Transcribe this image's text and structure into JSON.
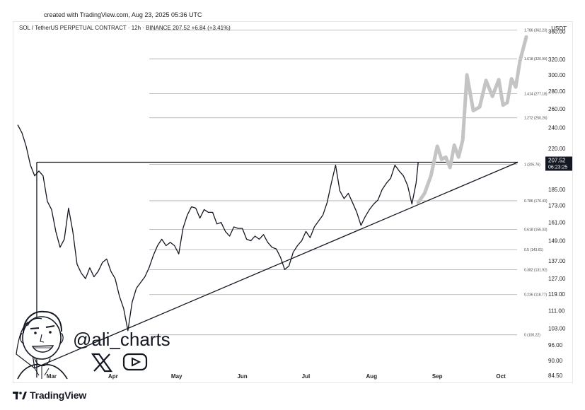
{
  "header": {
    "created_text": "created with TradingView.com, Aug 23, 2025 05:36 UTC",
    "symbol_text": "SOL / TetherUS PERPETUAL CONTRACT · 12h · BINANCE  207.52  +6.84 (+3.41%)",
    "currency": "USDT"
  },
  "watermark": {
    "handle": "@ali_charts"
  },
  "footer": {
    "logo_text": "TradingView"
  },
  "colors": {
    "price_line": "#131722",
    "projection": "#c4c4c4",
    "fib_line": "#aaaaaa",
    "trendline": "#131722",
    "price_tag_bg": "#131722"
  },
  "chart_data": {
    "type": "line",
    "title": "",
    "xlabel": "",
    "ylabel": "",
    "ylim": [
      82,
      375
    ],
    "y_scale": "log",
    "x_ticks": [
      "Mar",
      "Apr",
      "May",
      "Jun",
      "Jul",
      "Aug",
      "Sep",
      "Oct"
    ],
    "y_ticks": [
      360.0,
      320.0,
      300.0,
      280.0,
      260.0,
      240.0,
      220.0,
      185.0,
      173.0,
      161.0,
      149.0,
      137.0,
      127.0,
      119.0,
      111.0,
      103.0,
      96.0,
      90.0,
      84.5
    ],
    "y_tick_labels": [
      "360.00",
      "320.00",
      "300.00",
      "280.00",
      "260.00",
      "240.00",
      "220.00",
      "185.00",
      "173.00",
      "161.00",
      "149.00",
      "137.00",
      "127.00",
      "119.00",
      "111.00",
      "103.00",
      "96.00",
      "90.00",
      "84.50"
    ],
    "current_price": {
      "value": 207.52,
      "label": "207.52",
      "countdown": "06:23:25"
    },
    "fib_levels": [
      {
        "ratio": "1.786",
        "value": 362.23,
        "label": "1.786 (362.23)"
      },
      {
        "ratio": "1.618",
        "value": 320.99,
        "label": "1.618 (320.99)"
      },
      {
        "ratio": "1.414",
        "value": 277.18,
        "label": "1.414 (277.18)"
      },
      {
        "ratio": "1.272",
        "value": 250.26,
        "label": "1.272 (250.26)"
      },
      {
        "ratio": "1",
        "value": 205.76,
        "label": "1 (205.76)"
      },
      {
        "ratio": "0.786",
        "value": 176.43,
        "label": "0.786 (176.43)"
      },
      {
        "ratio": "0.618",
        "value": 156.33,
        "label": "0.618 (156.33)"
      },
      {
        "ratio": "0.5",
        "value": 143.61,
        "label": "0.5 (143.61)"
      },
      {
        "ratio": "0.382",
        "value": 131.92,
        "label": "0.382 (131.92)"
      },
      {
        "ratio": "0.236",
        "value": 118.77,
        "label": "0.236 (118.77)"
      },
      {
        "ratio": "0",
        "value": 100.22,
        "label": "0 (100.22)"
      }
    ],
    "series": [
      {
        "name": "",
        "x": [
          "2025-02-15",
          "2025-02-17",
          "2025-02-19",
          "2025-02-21",
          "2025-02-23",
          "2025-02-25",
          "2025-02-27",
          "2025-03-01",
          "2025-03-03",
          "2025-03-05",
          "2025-03-07",
          "2025-03-09",
          "2025-03-11",
          "2025-03-13",
          "2025-03-15",
          "2025-03-17",
          "2025-03-19",
          "2025-03-21",
          "2025-03-23",
          "2025-03-25",
          "2025-03-27",
          "2025-03-29",
          "2025-03-31",
          "2025-04-02",
          "2025-04-04",
          "2025-04-06",
          "2025-04-08",
          "2025-04-10",
          "2025-04-12",
          "2025-04-14",
          "2025-04-16",
          "2025-04-18",
          "2025-04-20",
          "2025-04-22",
          "2025-04-24",
          "2025-04-26",
          "2025-04-28",
          "2025-04-30",
          "2025-05-02",
          "2025-05-04",
          "2025-05-06",
          "2025-05-08",
          "2025-05-10",
          "2025-05-12",
          "2025-05-14",
          "2025-05-16",
          "2025-05-18",
          "2025-05-20",
          "2025-05-22",
          "2025-05-24",
          "2025-05-26",
          "2025-05-28",
          "2025-05-30",
          "2025-06-01",
          "2025-06-03",
          "2025-06-05",
          "2025-06-07",
          "2025-06-09",
          "2025-06-11",
          "2025-06-13",
          "2025-06-15",
          "2025-06-17",
          "2025-06-19",
          "2025-06-21",
          "2025-06-23",
          "2025-06-25",
          "2025-06-27",
          "2025-06-29",
          "2025-07-01",
          "2025-07-03",
          "2025-07-05",
          "2025-07-07",
          "2025-07-09",
          "2025-07-11",
          "2025-07-13",
          "2025-07-15",
          "2025-07-17",
          "2025-07-19",
          "2025-07-21",
          "2025-07-23",
          "2025-07-25",
          "2025-07-27",
          "2025-07-29",
          "2025-07-31",
          "2025-08-02",
          "2025-08-04",
          "2025-08-06",
          "2025-08-08",
          "2025-08-10",
          "2025-08-12",
          "2025-08-14",
          "2025-08-16",
          "2025-08-18",
          "2025-08-20",
          "2025-08-22",
          "2025-08-23"
        ],
        "values": [
          243,
          235,
          222,
          205,
          196,
          200,
          196,
          176,
          170,
          155,
          145,
          150,
          171,
          155,
          135,
          130,
          127,
          133,
          128,
          131,
          136,
          138,
          131,
          127,
          118,
          112,
          102,
          115,
          122,
          125,
          128,
          133,
          140,
          146,
          150,
          146,
          148,
          146,
          141,
          157,
          166,
          172,
          171,
          164,
          170,
          168,
          168,
          160,
          161,
          155,
          152,
          158,
          157,
          157,
          150,
          149,
          152,
          150,
          153,
          148,
          145,
          144,
          139,
          132,
          134,
          142,
          146,
          149,
          155,
          151,
          158,
          162,
          166,
          175,
          190,
          205,
          184,
          178,
          182,
          175,
          168,
          159,
          165,
          170,
          174,
          177,
          185,
          190,
          194,
          205,
          200,
          196,
          188,
          174,
          190,
          207.52
        ]
      },
      {
        "name": "",
        "x": [
          "2025-08-23",
          "2025-08-26",
          "2025-08-29",
          "2025-09-01",
          "2025-09-03",
          "2025-09-05",
          "2025-09-07",
          "2025-09-09",
          "2025-09-11",
          "2025-09-13",
          "2025-09-15",
          "2025-09-18",
          "2025-09-21",
          "2025-09-24",
          "2025-09-27",
          "2025-09-30",
          "2025-10-02",
          "2025-10-04",
          "2025-10-06",
          "2025-10-08",
          "2025-10-10",
          "2025-10-13"
        ],
        "values": [
          175,
          182,
          196,
          222,
          210,
          212,
          203,
          223,
          212,
          228,
          300,
          258,
          262,
          293,
          274,
          294,
          264,
          267,
          295,
          285,
          318,
          352
        ]
      }
    ],
    "trendlines": [
      {
        "from": {
          "x": "2025-02-24",
          "y": 207.52
        },
        "to": {
          "x": "2025-10-09",
          "y": 207.52
        }
      },
      {
        "from": {
          "x": "2025-02-24",
          "y": 207.52
        },
        "to": {
          "x": "2025-02-24",
          "y": 83.7
        }
      },
      {
        "from": {
          "x": "2025-02-23",
          "y": 87.1
        },
        "to": {
          "x": "2025-10-09",
          "y": 207.52
        }
      }
    ]
  }
}
